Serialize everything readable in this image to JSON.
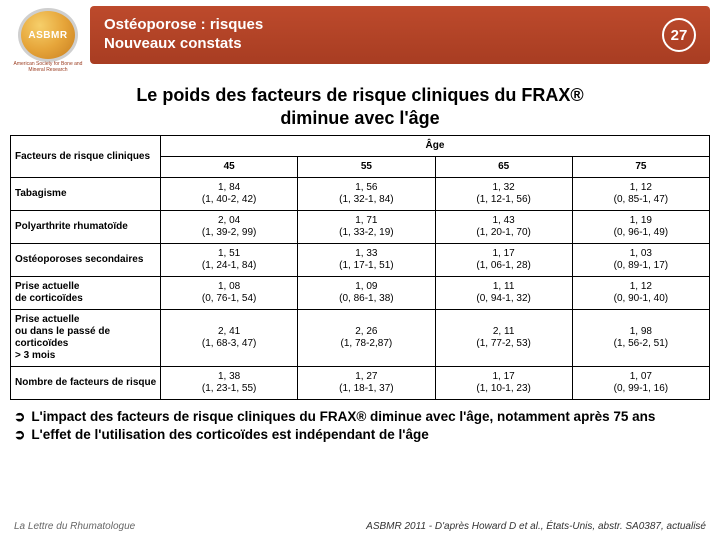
{
  "logo": {
    "text": "ASBMR",
    "sub": "American Society for Bone and Mineral Research"
  },
  "header": {
    "title_line1": "Ostéoporose : risques",
    "title_line2": "Nouveaux constats",
    "page_number": "27",
    "bg_color": "#a83d22"
  },
  "main_title_line1": "Le poids des facteurs de risque cliniques du FRAX®",
  "main_title_line2": "diminue avec l'âge",
  "table": {
    "corner_label": "Facteurs de risque cliniques",
    "age_label": "Âge",
    "ages": [
      "45",
      "55",
      "65",
      "75"
    ],
    "rows": [
      {
        "label": "Tabagisme",
        "cells": [
          "1, 84\n(1, 40-2, 42)",
          "1, 56\n(1, 32-1, 84)",
          "1, 32\n(1, 12-1, 56)",
          "1, 12\n(0, 85-1, 47)"
        ]
      },
      {
        "label": "Polyarthrite rhumatoïde",
        "cells": [
          "2, 04\n(1, 39-2, 99)",
          "1, 71\n(1, 33-2, 19)",
          "1, 43\n(1, 20-1, 70)",
          "1, 19\n(0, 96-1, 49)"
        ]
      },
      {
        "label": "Ostéoporoses secondaires",
        "cells": [
          "1, 51\n(1, 24-1, 84)",
          "1, 33\n(1, 17-1, 51)",
          "1, 17\n(1, 06-1, 28)",
          "1, 03\n(0, 89-1, 17)"
        ]
      },
      {
        "label": "Prise actuelle\nde corticoïdes",
        "cells": [
          "1, 08\n(0, 76-1, 54)",
          "1, 09\n(0, 86-1, 38)",
          "1, 11\n(0, 94-1, 32)",
          "1, 12\n(0, 90-1, 40)"
        ]
      },
      {
        "label": "Prise actuelle\nou dans le passé de corticoïdes\n> 3 mois",
        "cells": [
          "2, 41\n(1, 68-3, 47)",
          "2, 26\n(1, 78-2,87)",
          "2, 11\n(1, 77-2, 53)",
          "1, 98\n(1, 56-2, 51)"
        ]
      },
      {
        "label": "Nombre de facteurs de risque",
        "cells": [
          "1, 38\n(1, 23-1, 55)",
          "1, 27\n(1, 18-1, 37)",
          "1, 17\n(1, 10-1, 23)",
          "1, 07\n(0, 99-1, 16)"
        ]
      }
    ],
    "border_color": "#000000",
    "cell_fontsize": 10
  },
  "bullets": [
    "L'impact des facteurs de risque cliniques du FRAX® diminue avec l'âge, notamment après 75 ans",
    "L'effet de l'utilisation des corticoïdes est indépendant de l'âge"
  ],
  "bullet_marker": "➲",
  "footer": {
    "left": "La Lettre du Rhumatologue",
    "right": "ASBMR 2011 - D'après Howard D et al., États-Unis, abstr. SA0387, actualisé"
  }
}
